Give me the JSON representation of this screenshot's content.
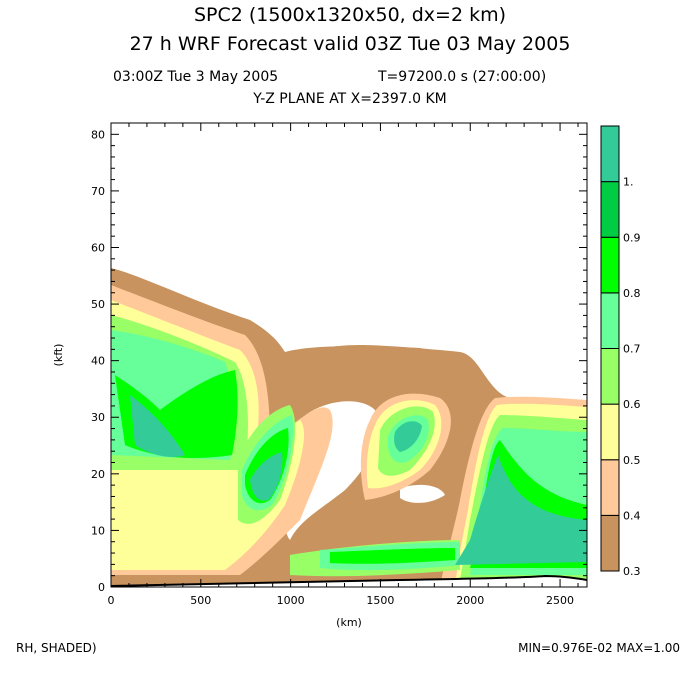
{
  "header": {
    "title_line1": "SPC2 (1500x1320x50, dx=2 km)",
    "title_line2": "27 h  WRF Forecast valid 03Z Tue 03 May 2005",
    "subtitle_time": "03:00Z Tue  3 May 2005",
    "subtitle_seconds": "T=97200.0 s (27:00:00)",
    "plane": "Y-Z PLANE AT X=2397.0 KM"
  },
  "footer": {
    "field": "RH, SHADED)",
    "minmax": "MIN=0.976E-02 MAX=1.00"
  },
  "chart_data": {
    "type": "heatmap",
    "title": "Y-Z PLANE AT X=2397.0 KM",
    "xlabel": "(km)",
    "ylabel": "(kft)",
    "xlim": [
      0,
      2650
    ],
    "ylim": [
      0,
      82
    ],
    "xticks": [
      0,
      500,
      1000,
      1500,
      2000,
      2500
    ],
    "yticks": [
      0,
      10,
      20,
      30,
      40,
      50,
      60,
      70,
      80
    ],
    "colorbar": {
      "levels": [
        0.3,
        0.4,
        0.5,
        0.6,
        0.7,
        0.8,
        0.9,
        1.0
      ],
      "labels": [
        "0.3",
        "0.4",
        "0.5",
        "0.6",
        "0.7",
        "0.8",
        "0.9",
        "1."
      ],
      "colors": [
        "#c8935e",
        "#ffc99a",
        "#ffff99",
        "#99ff66",
        "#66ff99",
        "#00ff00",
        "#00cc44",
        "#33cc99"
      ]
    },
    "field": "RH",
    "min": 0.00976,
    "max": 1.0
  }
}
